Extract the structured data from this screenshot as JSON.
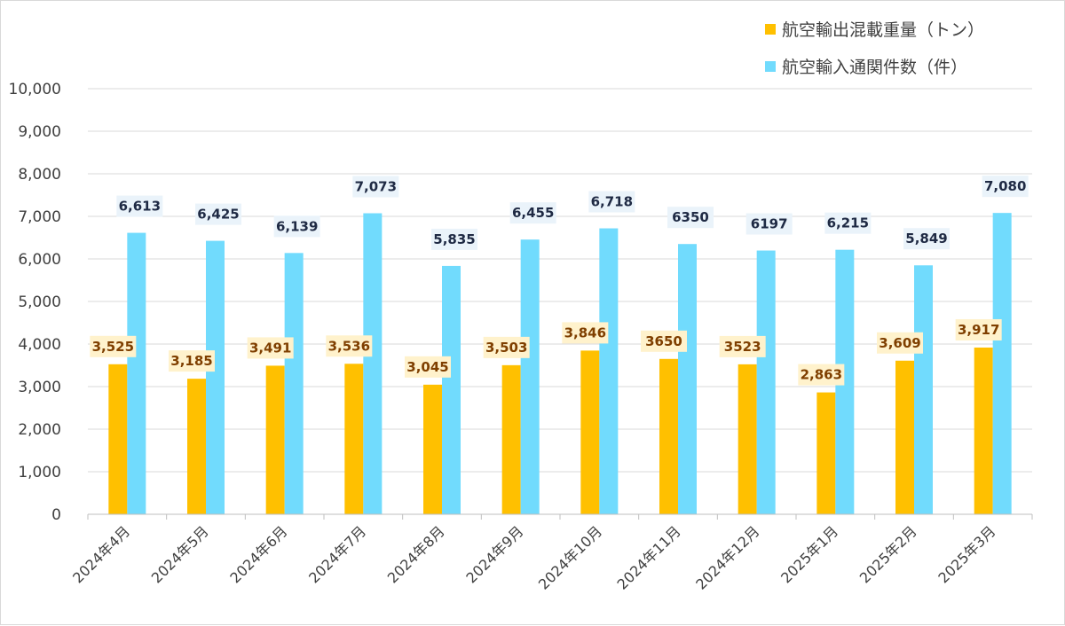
{
  "chart_data": {
    "type": "bar",
    "categories": [
      "2024年4月",
      "2024年5月",
      "2024年6月",
      "2024年7月",
      "2024年8月",
      "2024年9月",
      "2024年10月",
      "2024年11月",
      "2024年12月",
      "2025年1月",
      "2025年2月",
      "2025年3月"
    ],
    "series": [
      {
        "name": "航空輸出混載重量（トン）",
        "color": "#FFC000",
        "label_bg": "#FFF2CC",
        "label_color": "#7F3F00",
        "values": [
          3525,
          3185,
          3491,
          3536,
          3045,
          3503,
          3846,
          3650,
          3523,
          2863,
          3609,
          3917
        ],
        "labels": [
          "3,525",
          "3,185",
          "3,491",
          "3,536",
          "3,045",
          "3,503",
          "3,846",
          "3650",
          "3523",
          "2,863",
          "3,609",
          "3,917"
        ]
      },
      {
        "name": "航空輸入通関件数（件）",
        "color": "#71DBFD",
        "label_bg": "#EAF3FA",
        "label_color": "#1F2A44",
        "values": [
          6613,
          6425,
          6139,
          7073,
          5835,
          6455,
          6718,
          6350,
          6197,
          6215,
          5849,
          7080
        ],
        "labels": [
          "6,613",
          "6,425",
          "6,139",
          "7,073",
          "5,835",
          "6,455",
          "6,718",
          "6350",
          "6197",
          "6,215",
          "5,849",
          "7,080"
        ]
      }
    ],
    "ylim": [
      0,
      10000
    ],
    "yticks": [
      0,
      1000,
      2000,
      3000,
      4000,
      5000,
      6000,
      7000,
      8000,
      9000,
      10000
    ],
    "ytick_labels": [
      "0",
      "1,000",
      "2,000",
      "3,000",
      "4,000",
      "5,000",
      "6,000",
      "7,000",
      "8,000",
      "9,000",
      "10,000"
    ],
    "grid": true,
    "legend_position": "top-right",
    "gridline_color": "#d9d9d9"
  }
}
